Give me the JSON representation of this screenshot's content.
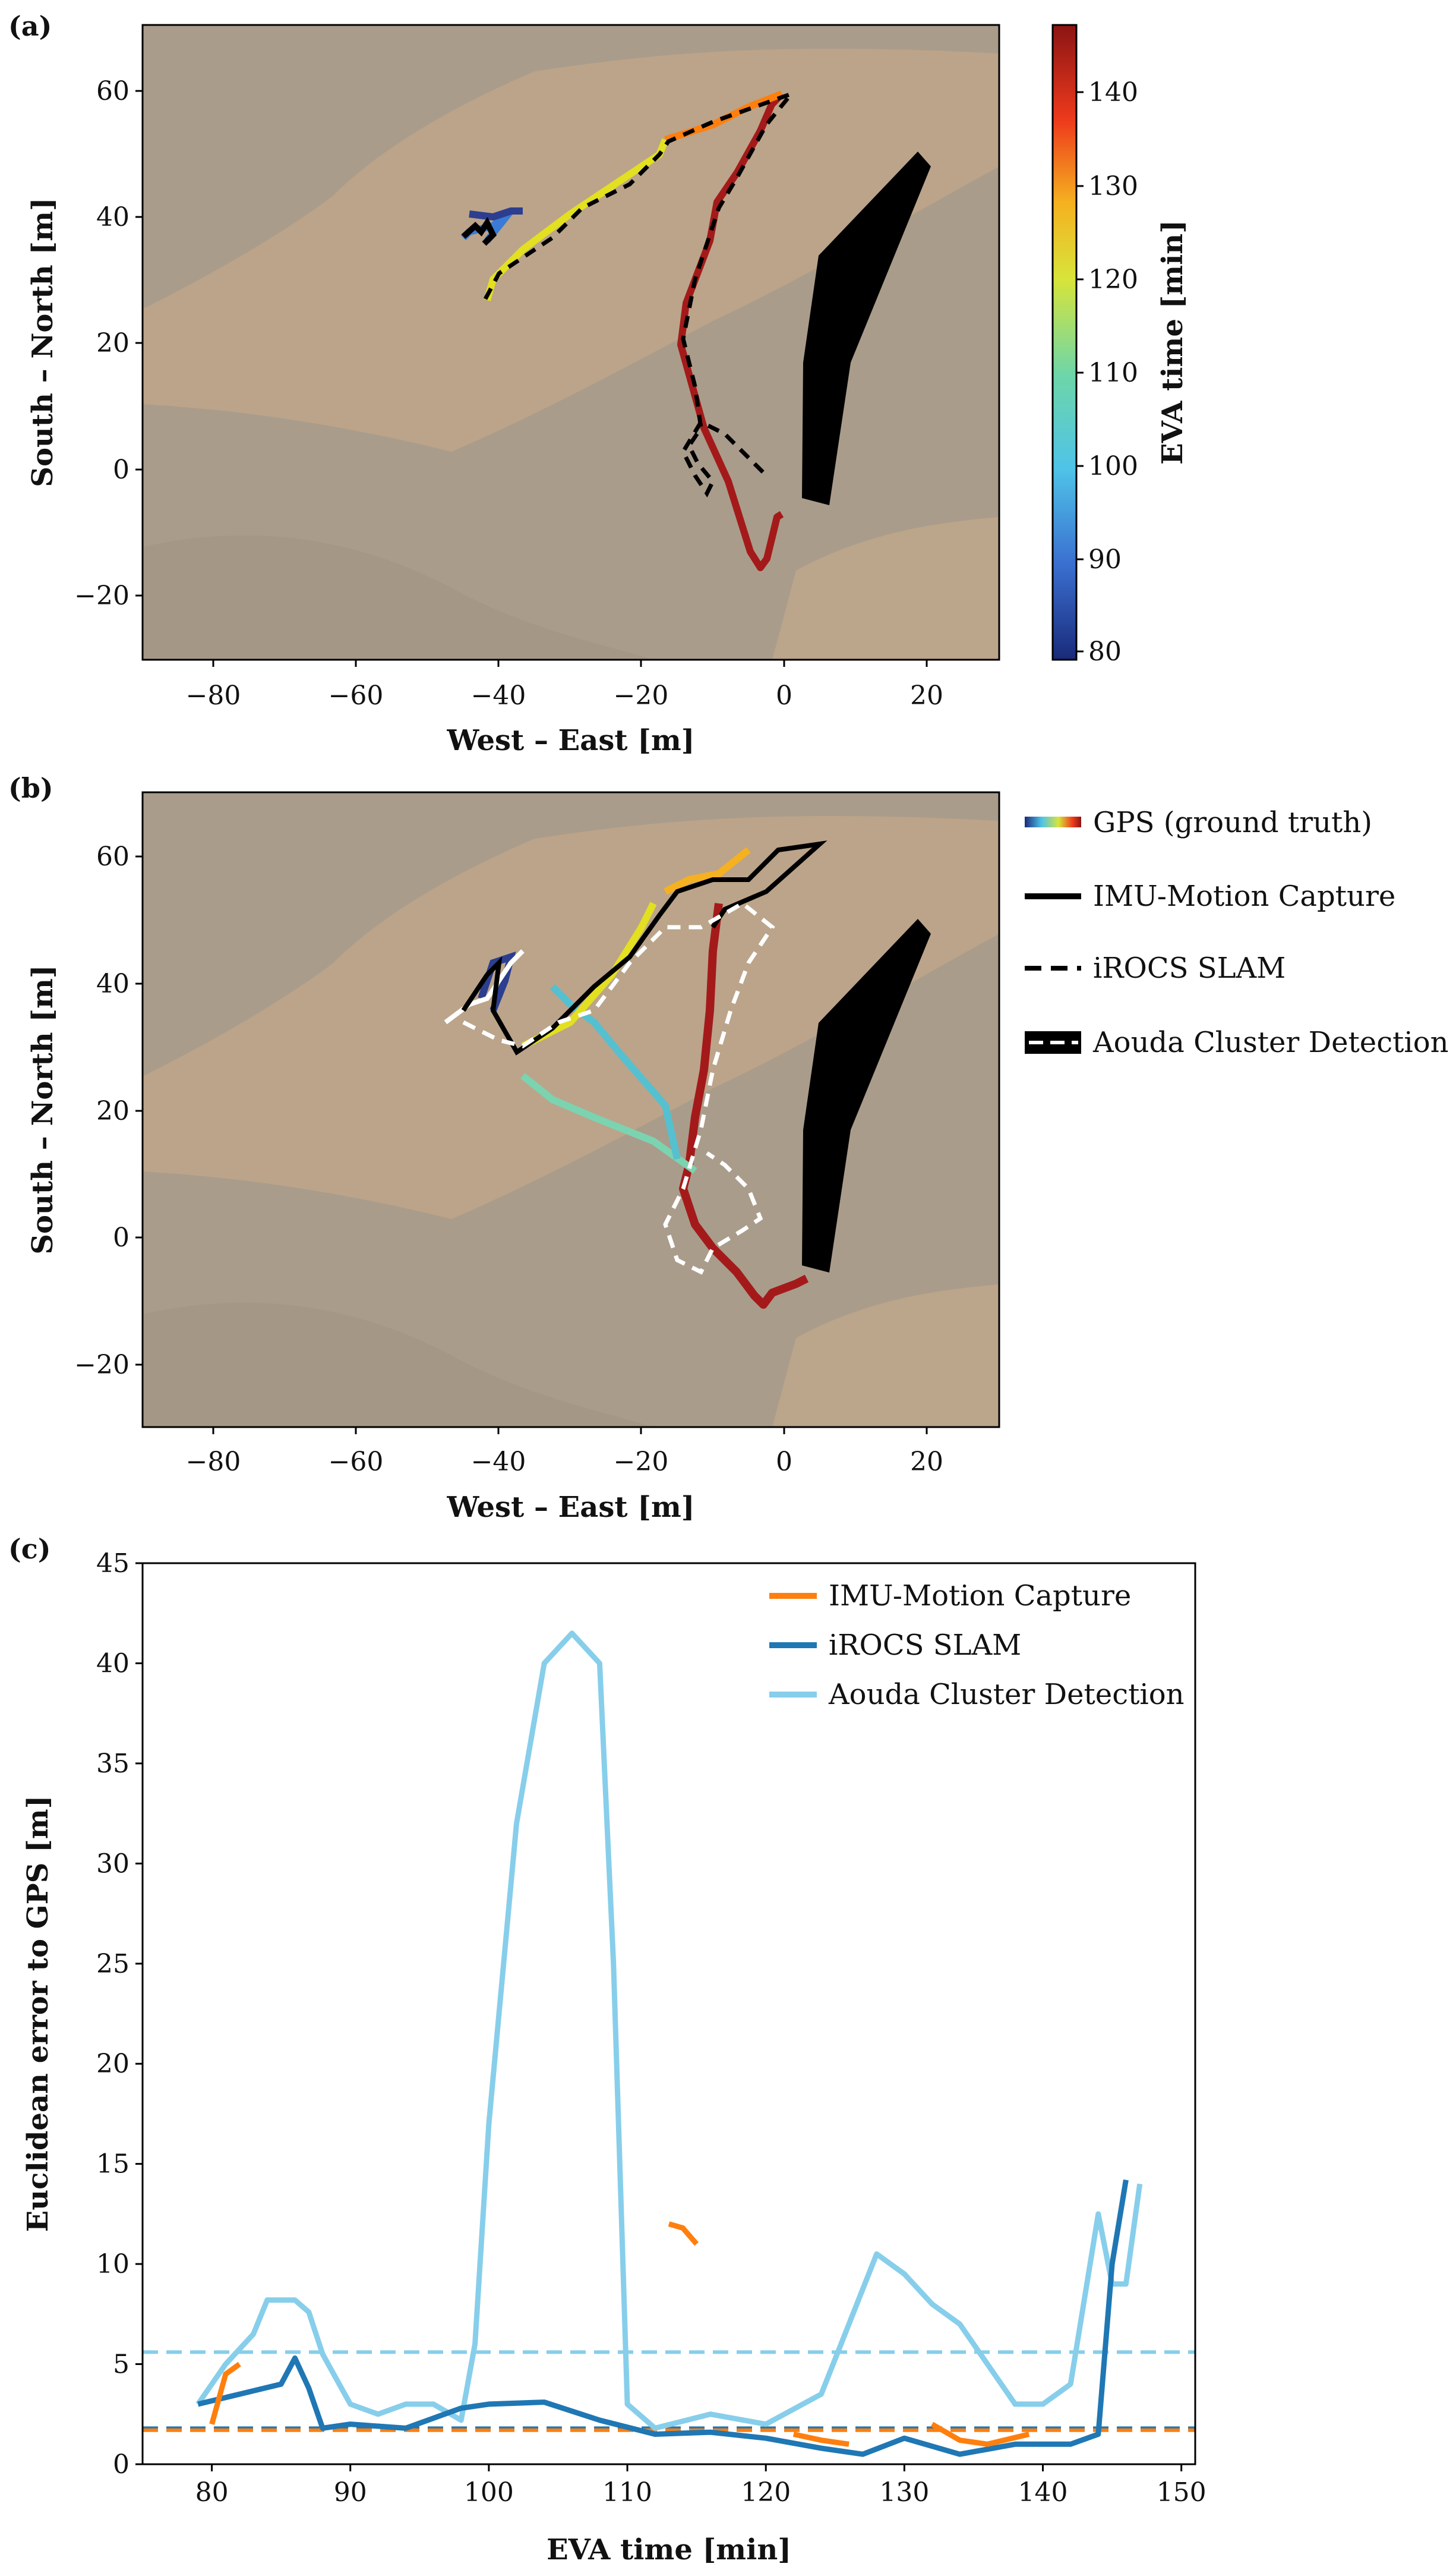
{
  "panels": {
    "a": {
      "letter": "(a)",
      "xlabel": "West – East [m]",
      "ylabel": "South – North [m]",
      "xticks": [
        "−80",
        "−60",
        "−40",
        "−20",
        "0",
        "20"
      ],
      "yticks": [
        "60",
        "40",
        "20",
        "0",
        "−20"
      ],
      "colorbar": {
        "label": "EVA time [min]",
        "ticks": [
          "140",
          "130",
          "120",
          "110",
          "100",
          "90",
          "80"
        ],
        "range": [
          79,
          147
        ]
      }
    },
    "b": {
      "letter": "(b)",
      "xlabel": "West – East [m]",
      "ylabel": "South – North [m]",
      "xticks": [
        "−80",
        "−60",
        "−40",
        "−20",
        "0",
        "20"
      ],
      "yticks": [
        "60",
        "40",
        "20",
        "0",
        "−20"
      ],
      "legend": [
        "GPS (ground truth)",
        "IMU-Motion Capture",
        "iROCS SLAM",
        "Aouda Cluster Detection"
      ]
    },
    "c": {
      "letter": "(c)",
      "xlabel": "EVA time [min]",
      "ylabel": "Euclidean error to GPS [m]",
      "xticks": [
        "80",
        "90",
        "100",
        "110",
        "120",
        "130",
        "140",
        "150"
      ],
      "yticks": [
        "45",
        "40",
        "35",
        "30",
        "25",
        "20",
        "15",
        "10",
        "5",
        "0"
      ],
      "legend": [
        "IMU-Motion Capture",
        "iROCS SLAM",
        "Aouda Cluster Detection"
      ]
    }
  },
  "colors": {
    "imu": "#ff7f0e",
    "slam": "#1f77b4",
    "aouda": "#87ceeb",
    "terrain": "#b39d84"
  },
  "chart_data": [
    {
      "type": "line",
      "panel": "a",
      "xlim": [
        -90,
        30
      ],
      "ylim": [
        -30,
        70
      ],
      "series": [
        {
          "name": "GPS (ground truth)",
          "x": [
            -45,
            -42,
            -38,
            -43,
            -40,
            -44,
            -34,
            -28,
            -22,
            -17,
            -16,
            -8,
            2,
            -2,
            -10,
            -14,
            -16,
            -13,
            -8,
            -4,
            2,
            0,
            -2,
            -4
          ],
          "y": [
            36,
            40,
            41,
            38,
            35,
            28,
            34,
            40,
            45,
            50,
            52,
            54,
            59,
            52,
            40,
            28,
            20,
            10,
            2,
            -5,
            -6,
            -12,
            -16,
            -14
          ]
        },
        {
          "name": "iROCS SLAM",
          "x": [
            -45,
            -42,
            -39,
            -43,
            -45,
            -38,
            -30,
            -23,
            -18,
            -17,
            -10,
            2,
            -5,
            -10,
            -14,
            -13,
            -15,
            -16,
            -12,
            -8,
            -4,
            -2,
            -8
          ],
          "y": [
            36,
            39,
            38,
            35,
            27,
            33,
            38,
            44,
            48,
            52,
            53,
            59,
            50,
            40,
            30,
            20,
            10,
            2,
            5,
            1,
            -2,
            -4,
            0
          ]
        }
      ]
    },
    {
      "type": "line",
      "panel": "b",
      "xlim": [
        -90,
        30
      ],
      "ylim": [
        -30,
        70
      ],
      "series": [
        {
          "name": "GPS (ground truth)",
          "x": [
            -42,
            -38,
            -36,
            -40,
            -37,
            -33,
            -25,
            -22,
            -20,
            -18,
            -14,
            -10,
            -5,
            0,
            4,
            -2,
            -6,
            -9,
            -11,
            -12,
            -15,
            -18,
            -25,
            -30,
            -36,
            -35,
            -25,
            -15,
            -12,
            -14,
            -10,
            -6,
            -2,
            2,
            0,
            -2
          ],
          "y": [
            38,
            42,
            46,
            40,
            34,
            32,
            38,
            44,
            52,
            58,
            60,
            61,
            60,
            61,
            60,
            54,
            48,
            40,
            30,
            20,
            10,
            14,
            20,
            22,
            28,
            44,
            38,
            22,
            10,
            4,
            -4,
            -8,
            -10,
            -7,
            -5,
            -5
          ]
        },
        {
          "name": "IMU-Motion Capture",
          "x": [
            -44,
            -40,
            -35,
            -38,
            -36,
            -30,
            -22,
            -20,
            -18,
            -16,
            -10,
            -5,
            0,
            7,
            3,
            -5,
            -7,
            -9
          ],
          "y": [
            36,
            42,
            44,
            38,
            30,
            34,
            42,
            46,
            54,
            56,
            58,
            57,
            62,
            62,
            56,
            50,
            48,
            48
          ]
        },
        {
          "name": "iROCS SLAM",
          "x": [
            -48,
            -40,
            -34,
            -28,
            -22,
            -18,
            -12,
            -8,
            -4,
            0,
            -4,
            -12,
            -14,
            -10,
            -16,
            -12,
            -14,
            -6,
            -9,
            -14,
            -16,
            -13,
            -8
          ],
          "y": [
            32,
            36,
            32,
            28,
            38,
            46,
            50,
            56,
            48,
            52,
            40,
            32,
            24,
            18,
            10,
            4,
            -2,
            4,
            -4,
            -6,
            2,
            8,
            12
          ]
        },
        {
          "name": "Aouda Cluster Detection",
          "x": [
            7,
            3,
            3,
            7,
            18,
            18,
            10,
            8
          ],
          "y": [
            -6,
            -2,
            16,
            34,
            50,
            48,
            34,
            16
          ]
        }
      ]
    },
    {
      "type": "line",
      "panel": "c",
      "xlabel": "EVA time [min]",
      "ylabel": "Euclidean error to GPS [m]",
      "xlim": [
        75,
        151
      ],
      "ylim": [
        0,
        45
      ],
      "series": [
        {
          "name": "Aouda Cluster Detection",
          "x": [
            79,
            81,
            83,
            84,
            86,
            87,
            88,
            90,
            92,
            94,
            96,
            98,
            99,
            100,
            102,
            104,
            106,
            108,
            109,
            110,
            112,
            116,
            120,
            124,
            126,
            128,
            130,
            132,
            134,
            136,
            138,
            140,
            142,
            144,
            145,
            146,
            147
          ],
          "y": [
            3.0,
            5.0,
            6.5,
            8.2,
            8.2,
            7.6,
            5.5,
            3.0,
            2.5,
            3.0,
            3.0,
            2.2,
            6.0,
            17.0,
            32.0,
            40.0,
            41.5,
            40.0,
            25.0,
            3.0,
            1.8,
            2.5,
            2.0,
            3.5,
            7.0,
            10.5,
            9.5,
            8.0,
            7.0,
            5.0,
            3.0,
            3.0,
            4.0,
            12.5,
            9.0,
            9.0,
            14.0
          ]
        },
        {
          "name": "iROCS SLAM",
          "x": [
            79,
            82,
            85,
            86,
            87,
            88,
            90,
            94,
            98,
            100,
            104,
            108,
            112,
            116,
            120,
            124,
            127,
            130,
            134,
            138,
            142,
            144,
            145,
            146
          ],
          "y": [
            3.0,
            3.5,
            4.0,
            5.3,
            3.8,
            1.8,
            2.0,
            1.8,
            2.8,
            3.0,
            3.1,
            2.2,
            1.5,
            1.6,
            1.3,
            0.8,
            0.5,
            1.3,
            0.5,
            1.0,
            1.0,
            1.5,
            10.0,
            14.2
          ]
        },
        {
          "name": "IMU-Motion Capture",
          "x": [
            80,
            81,
            82,
            113,
            114,
            115,
            122,
            124,
            126,
            132,
            134,
            136,
            139
          ],
          "y": [
            2.0,
            4.5,
            5.0,
            12.0,
            11.8,
            11.0,
            1.5,
            1.2,
            1.0,
            2.0,
            1.2,
            1.0,
            1.5
          ]
        }
      ],
      "reference_lines": [
        {
          "series": "Aouda Cluster Detection",
          "value": 5.6
        },
        {
          "series": "iROCS SLAM",
          "value": 1.8
        },
        {
          "series": "IMU-Motion Capture",
          "value": 1.7
        }
      ]
    }
  ]
}
